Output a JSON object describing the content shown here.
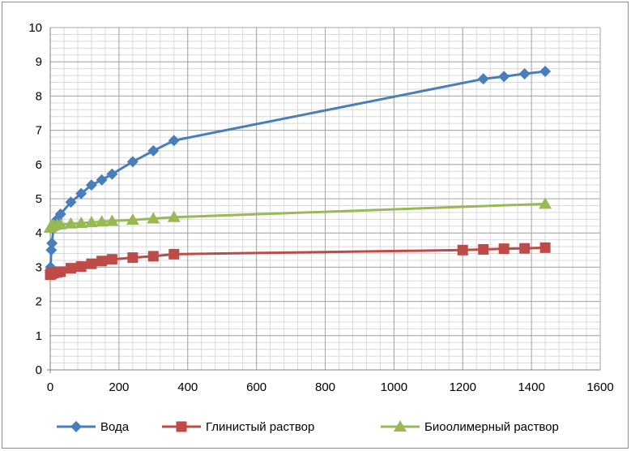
{
  "chart_data": {
    "type": "scatter",
    "title": "",
    "xlabel": "",
    "ylabel": "",
    "xlim": [
      0,
      1600
    ],
    "ylim": [
      0,
      10
    ],
    "x_ticks": [
      0,
      200,
      400,
      600,
      800,
      1000,
      1200,
      1400,
      1600
    ],
    "y_ticks": [
      0,
      1,
      2,
      3,
      4,
      5,
      6,
      7,
      8,
      9,
      10
    ],
    "x_tick_labels": [
      "0",
      "200",
      "400",
      "600",
      "800",
      "1000",
      "1200",
      "1400",
      "1600"
    ],
    "y_tick_labels": [
      "0",
      "1",
      "2",
      "3",
      "4",
      "5",
      "6",
      "7",
      "8",
      "9",
      "10"
    ],
    "grid": "major and minor",
    "legend_position": "bottom",
    "series": [
      {
        "name": "Вода",
        "color": "#4a7ebb",
        "marker": "diamond",
        "x": [
          0,
          1,
          3,
          5,
          10,
          20,
          30,
          60,
          90,
          120,
          150,
          180,
          240,
          300,
          360,
          1260,
          1320,
          1380,
          1440
        ],
        "y": [
          2.9,
          3.0,
          3.5,
          3.7,
          4.2,
          4.4,
          4.55,
          4.9,
          5.15,
          5.4,
          5.55,
          5.72,
          6.08,
          6.4,
          6.7,
          8.5,
          8.57,
          8.65,
          8.72
        ]
      },
      {
        "name": "Глинистый раствор",
        "color": "#be4b48",
        "marker": "square",
        "x": [
          0,
          1,
          3,
          5,
          10,
          20,
          30,
          60,
          90,
          120,
          150,
          180,
          240,
          300,
          360,
          1200,
          1260,
          1320,
          1380,
          1440
        ],
        "y": [
          2.78,
          2.8,
          2.8,
          2.82,
          2.83,
          2.85,
          2.87,
          2.97,
          3.02,
          3.1,
          3.18,
          3.23,
          3.28,
          3.32,
          3.38,
          3.5,
          3.52,
          3.54,
          3.55,
          3.57
        ]
      },
      {
        "name": "Биоолимерный раствор",
        "color": "#98b954",
        "marker": "triangle",
        "x": [
          0,
          1,
          3,
          5,
          10,
          20,
          30,
          60,
          90,
          120,
          150,
          180,
          240,
          300,
          360,
          1440
        ],
        "y": [
          4.15,
          4.18,
          4.2,
          4.2,
          4.22,
          4.24,
          4.25,
          4.27,
          4.29,
          4.31,
          4.33,
          4.35,
          4.38,
          4.42,
          4.46,
          4.85
        ]
      }
    ]
  }
}
